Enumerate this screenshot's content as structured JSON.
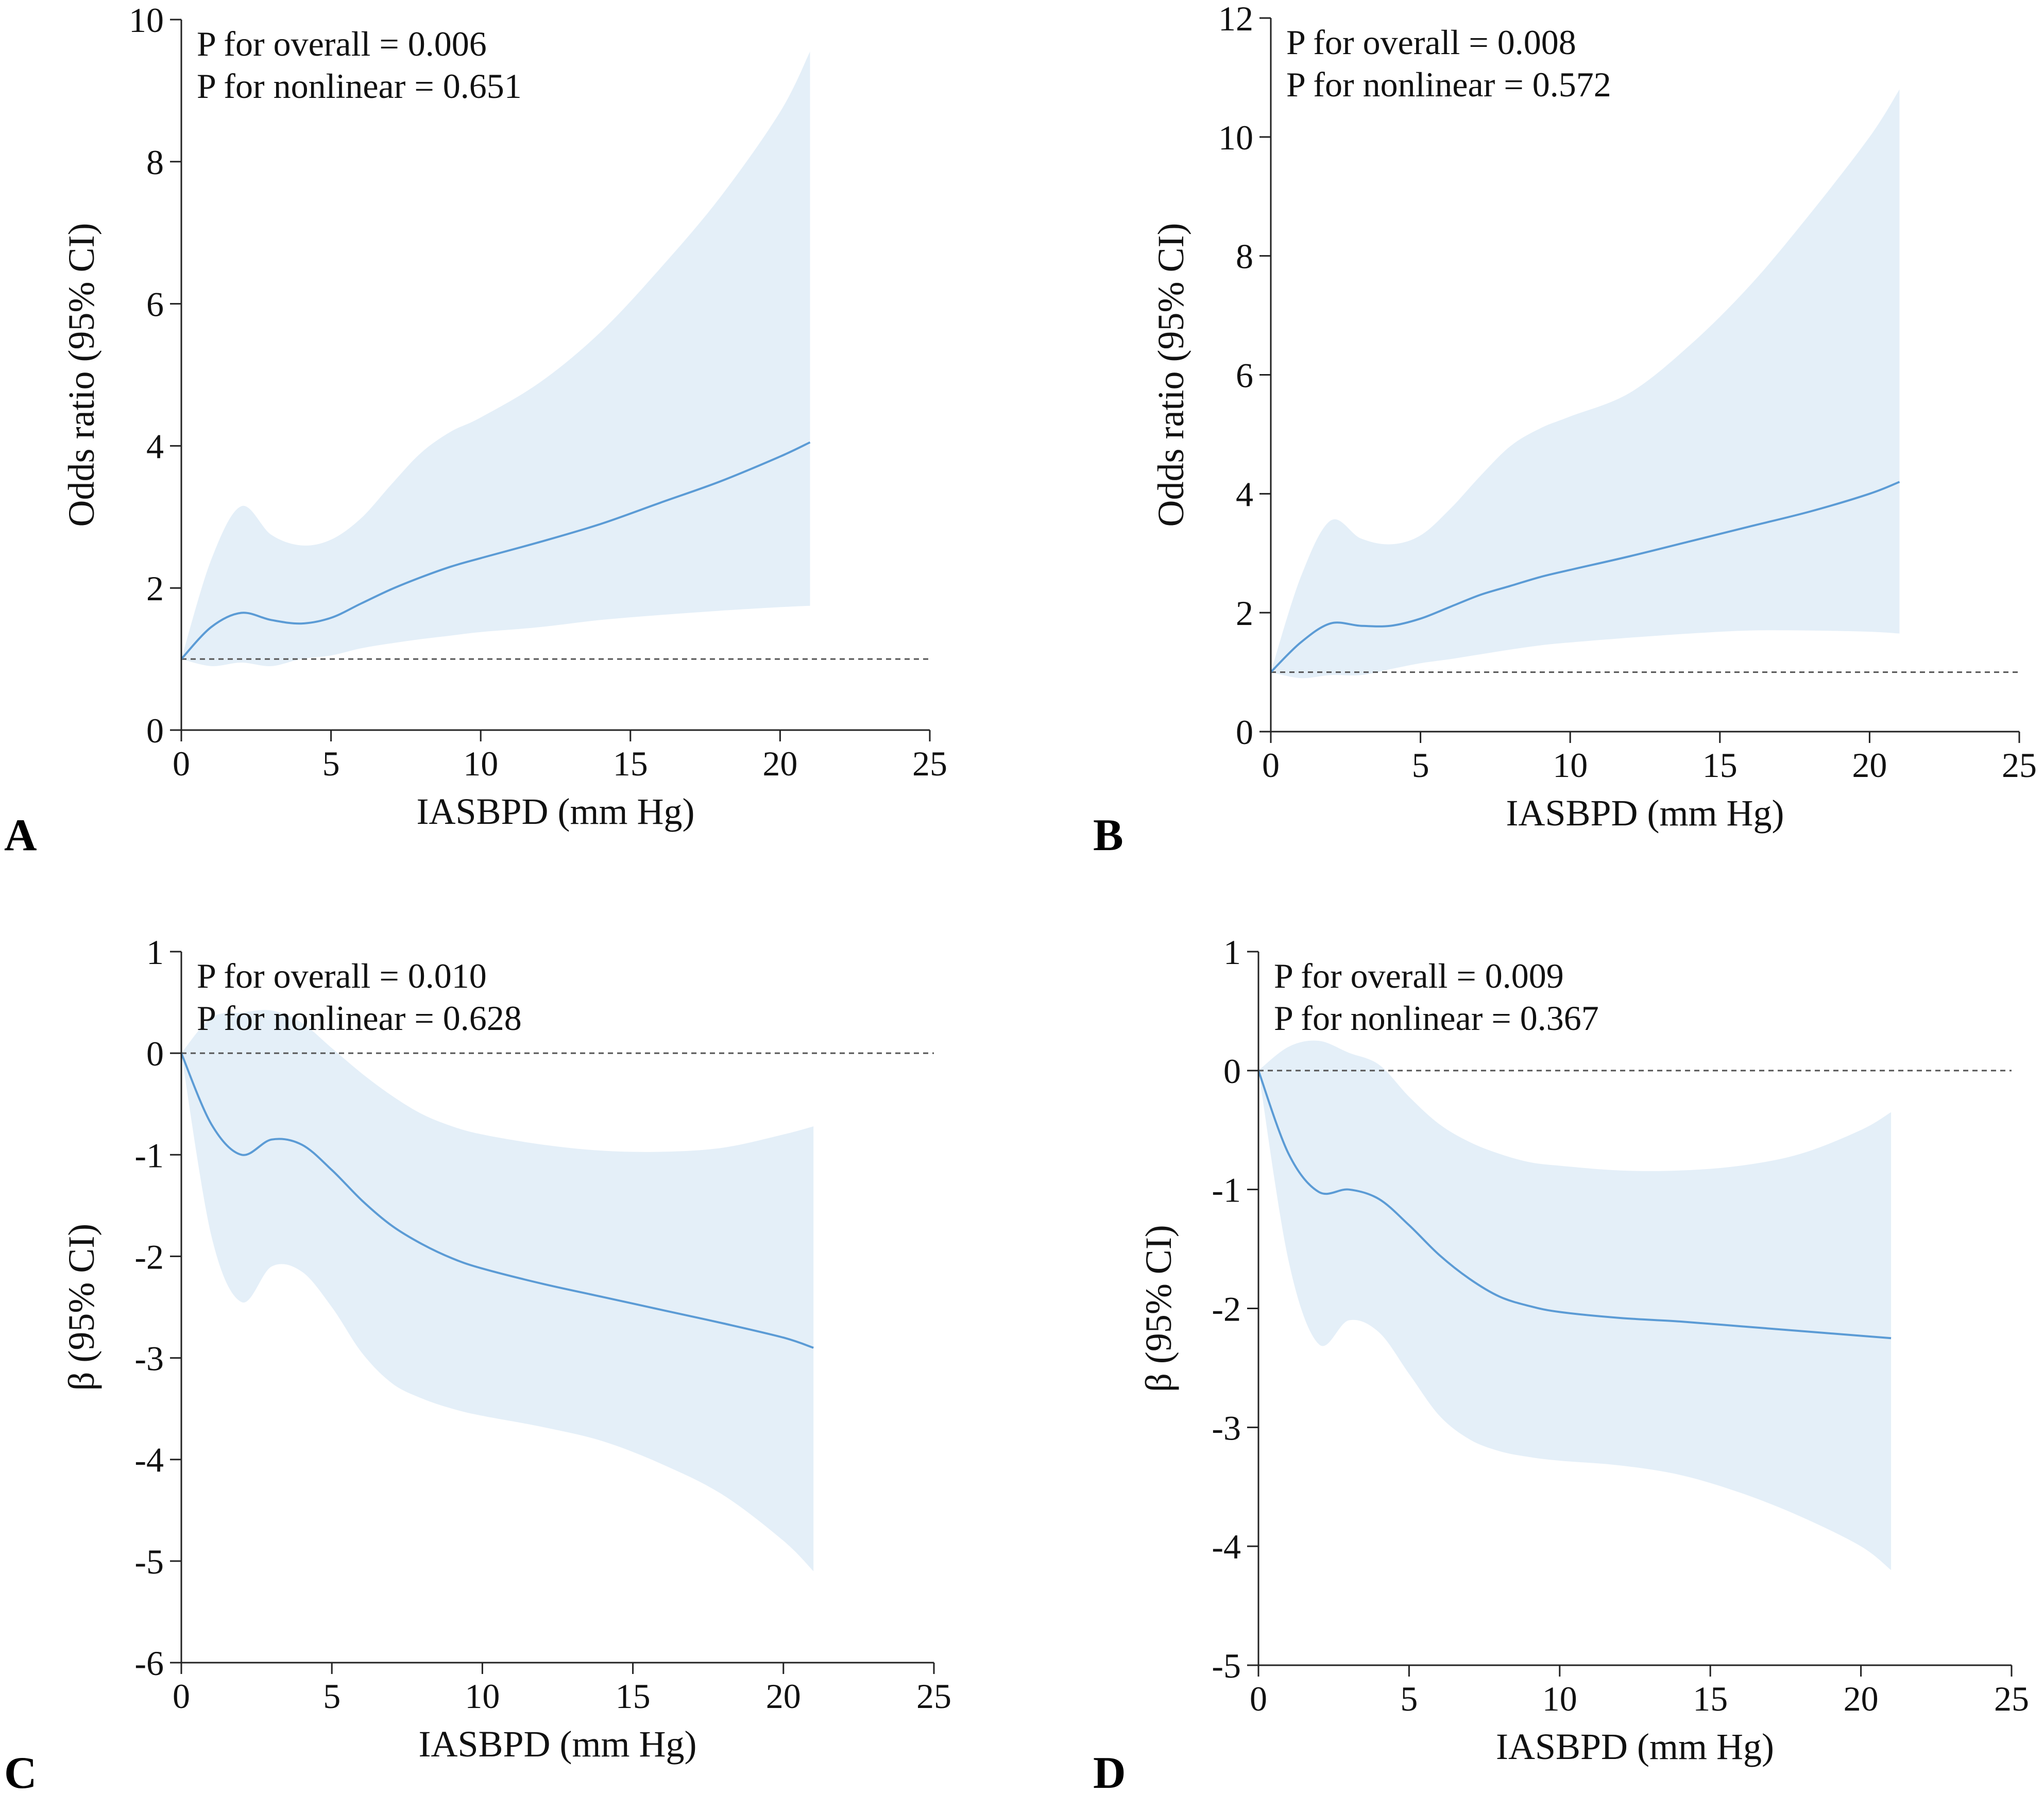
{
  "colors": {
    "line": "#5B9BD5",
    "band": "#E4EFF8",
    "axis": "#222222",
    "reference": "#555555"
  },
  "chart_data": [
    {
      "panel": "A",
      "type": "line",
      "xlabel": "IASBPD (mm Hg)",
      "ylabel": "Odds ratio (95% CI)",
      "xlim": [
        0,
        25
      ],
      "ylim": [
        0,
        10
      ],
      "xticks": [
        "0",
        "5",
        "10",
        "15",
        "20",
        "25"
      ],
      "yticks": [
        "0",
        "2",
        "4",
        "6",
        "8",
        "10"
      ],
      "reference_y": 1,
      "annotations": [
        "P for overall = 0.006",
        "P for nonlinear = 0.651"
      ],
      "x": [
        0,
        1,
        2,
        3,
        4,
        5,
        6,
        7,
        8,
        9,
        10,
        12,
        14,
        16,
        18,
        20,
        21
      ],
      "y": [
        1.0,
        1.45,
        1.65,
        1.55,
        1.5,
        1.58,
        1.78,
        1.98,
        2.15,
        2.3,
        2.42,
        2.65,
        2.9,
        3.2,
        3.5,
        3.85,
        4.05
      ],
      "lower": [
        1.0,
        0.9,
        0.95,
        0.9,
        1.0,
        1.05,
        1.15,
        1.22,
        1.28,
        1.33,
        1.38,
        1.45,
        1.55,
        1.62,
        1.68,
        1.73,
        1.75
      ],
      "upper": [
        1.0,
        2.4,
        3.15,
        2.75,
        2.6,
        2.68,
        2.98,
        3.45,
        3.9,
        4.2,
        4.4,
        4.9,
        5.6,
        6.5,
        7.5,
        8.7,
        9.55
      ]
    },
    {
      "panel": "B",
      "type": "line",
      "xlabel": "IASBPD (mm Hg)",
      "ylabel": "Odds ratio (95% CI)",
      "xlim": [
        0,
        25
      ],
      "ylim": [
        0,
        12
      ],
      "xticks": [
        "0",
        "5",
        "10",
        "15",
        "20",
        "25"
      ],
      "yticks": [
        "0",
        "2",
        "4",
        "6",
        "8",
        "10",
        "12"
      ],
      "reference_y": 1,
      "annotations": [
        "P for overall = 0.008",
        "P for nonlinear = 0.572"
      ],
      "x": [
        0,
        1,
        2,
        3,
        4,
        5,
        6,
        7,
        8,
        9,
        10,
        12,
        14,
        16,
        18,
        20,
        21
      ],
      "y": [
        1.0,
        1.5,
        1.82,
        1.78,
        1.78,
        1.9,
        2.1,
        2.3,
        2.45,
        2.6,
        2.72,
        2.95,
        3.2,
        3.45,
        3.7,
        4.0,
        4.2
      ],
      "lower": [
        1.0,
        0.9,
        0.95,
        0.95,
        1.05,
        1.15,
        1.22,
        1.3,
        1.38,
        1.45,
        1.5,
        1.58,
        1.65,
        1.7,
        1.7,
        1.68,
        1.65
      ],
      "upper": [
        1.0,
        2.6,
        3.55,
        3.25,
        3.15,
        3.3,
        3.75,
        4.3,
        4.8,
        5.1,
        5.3,
        5.7,
        6.5,
        7.5,
        8.7,
        10.0,
        10.8
      ]
    },
    {
      "panel": "C",
      "type": "line",
      "xlabel": "IASBPD (mm Hg)",
      "ylabel": "β (95% CI)",
      "xlim": [
        0,
        25
      ],
      "ylim": [
        -6,
        1
      ],
      "xticks": [
        "0",
        "5",
        "10",
        "15",
        "20",
        "25"
      ],
      "yticks": [
        "-6",
        "-5",
        "-4",
        "-3",
        "-2",
        "-1",
        "0",
        "1"
      ],
      "reference_y": 0,
      "annotations": [
        "P for overall = 0.010",
        "P for nonlinear = 0.628"
      ],
      "x": [
        0,
        1,
        2,
        3,
        4,
        5,
        6,
        7,
        8,
        9,
        10,
        12,
        14,
        16,
        18,
        20,
        21
      ],
      "y": [
        0.0,
        -0.7,
        -1.0,
        -0.85,
        -0.9,
        -1.15,
        -1.45,
        -1.7,
        -1.88,
        -2.02,
        -2.12,
        -2.27,
        -2.4,
        -2.53,
        -2.66,
        -2.8,
        -2.9
      ],
      "lower": [
        0.0,
        -1.8,
        -2.45,
        -2.1,
        -2.15,
        -2.5,
        -2.95,
        -3.25,
        -3.4,
        -3.5,
        -3.57,
        -3.68,
        -3.82,
        -4.05,
        -4.35,
        -4.8,
        -5.1
      ],
      "upper": [
        0.0,
        0.35,
        0.4,
        0.42,
        0.3,
        0.05,
        -0.2,
        -0.42,
        -0.6,
        -0.72,
        -0.8,
        -0.9,
        -0.96,
        -0.97,
        -0.93,
        -0.8,
        -0.72
      ]
    },
    {
      "panel": "D",
      "type": "line",
      "xlabel": "IASBPD (mm Hg)",
      "ylabel": "β (95% CI)",
      "xlim": [
        0,
        25
      ],
      "ylim": [
        -5,
        1
      ],
      "xticks": [
        "0",
        "5",
        "10",
        "15",
        "20",
        "25"
      ],
      "yticks": [
        "-5",
        "-4",
        "-3",
        "-2",
        "-1",
        "0",
        "1"
      ],
      "reference_y": 0,
      "annotations": [
        "P for overall = 0.009",
        "P for nonlinear = 0.367"
      ],
      "x": [
        0,
        1,
        2,
        3,
        4,
        5,
        6,
        7,
        8,
        9,
        10,
        12,
        14,
        16,
        18,
        20,
        21
      ],
      "y": [
        0.0,
        -0.7,
        -1.02,
        -1.0,
        -1.08,
        -1.3,
        -1.55,
        -1.75,
        -1.9,
        -1.98,
        -2.03,
        -2.08,
        -2.11,
        -2.15,
        -2.19,
        -2.23,
        -2.25
      ],
      "lower": [
        0.0,
        -1.6,
        -2.3,
        -2.1,
        -2.2,
        -2.55,
        -2.9,
        -3.1,
        -3.2,
        -3.25,
        -3.28,
        -3.32,
        -3.4,
        -3.55,
        -3.75,
        -4.0,
        -4.2
      ],
      "upper": [
        0.0,
        0.2,
        0.25,
        0.15,
        0.05,
        -0.22,
        -0.45,
        -0.6,
        -0.7,
        -0.77,
        -0.8,
        -0.84,
        -0.84,
        -0.8,
        -0.7,
        -0.5,
        -0.35
      ]
    }
  ]
}
